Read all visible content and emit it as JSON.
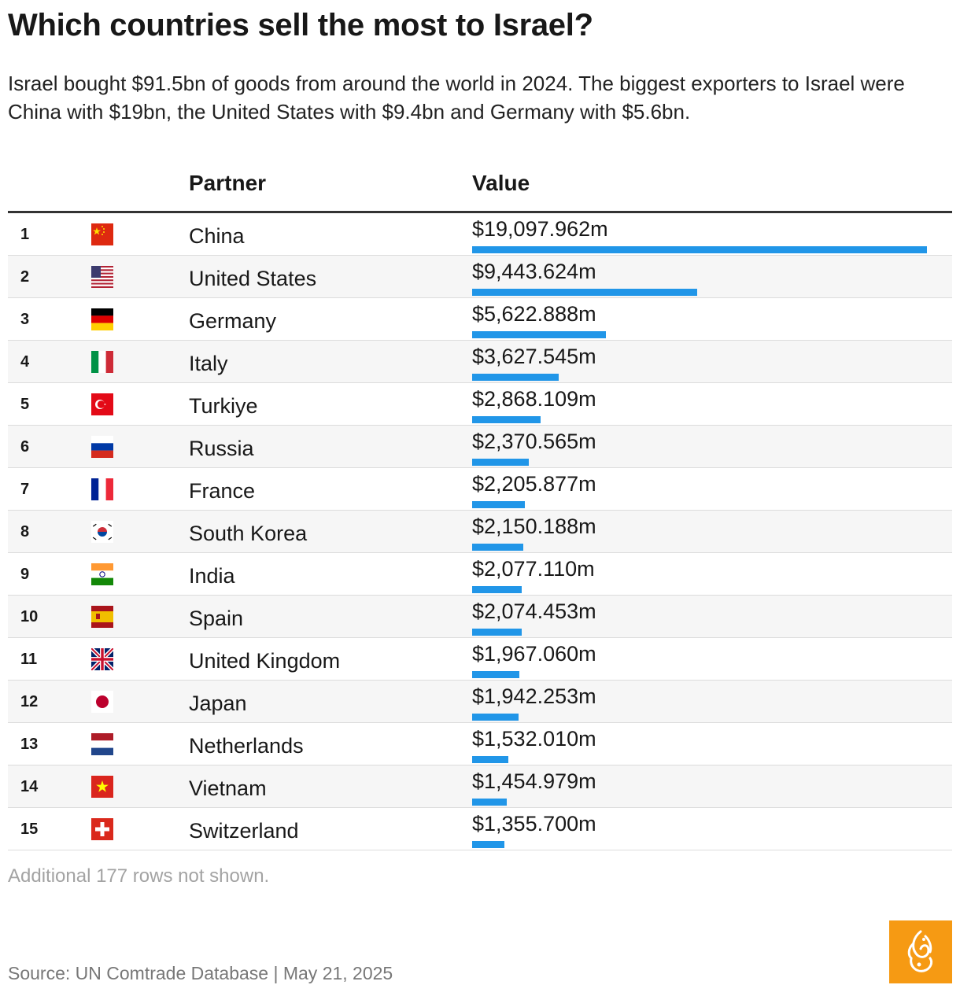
{
  "title": "Which countries sell the most to Israel?",
  "subtitle": "Israel bought $91.5bn of goods from around the world in 2024. The biggest exporters to Israel were China with $19bn, the United States with $9.4bn and Germany with $5.6bn.",
  "columns": {
    "partner": "Partner",
    "value": "Value"
  },
  "note": "Additional 177 rows not shown.",
  "source": "Source: UN Comtrade Database | May 21, 2025",
  "bar_color": "#2196e8",
  "chart_data": {
    "type": "table",
    "max_value": 19097.962,
    "rows": [
      {
        "rank": "1",
        "flag": "china-flag-icon",
        "partner": "China",
        "value": 19097.962,
        "value_label": "$19,097.962m"
      },
      {
        "rank": "2",
        "flag": "usa-flag-icon",
        "partner": "United States",
        "value": 9443.624,
        "value_label": "$9,443.624m"
      },
      {
        "rank": "3",
        "flag": "germany-flag-icon",
        "partner": "Germany",
        "value": 5622.888,
        "value_label": "$5,622.888m"
      },
      {
        "rank": "4",
        "flag": "italy-flag-icon",
        "partner": "Italy",
        "value": 3627.545,
        "value_label": "$3,627.545m"
      },
      {
        "rank": "5",
        "flag": "turkiye-flag-icon",
        "partner": "Turkiye",
        "value": 2868.109,
        "value_label": "$2,868.109m"
      },
      {
        "rank": "6",
        "flag": "russia-flag-icon",
        "partner": "Russia",
        "value": 2370.565,
        "value_label": "$2,370.565m"
      },
      {
        "rank": "7",
        "flag": "france-flag-icon",
        "partner": "France",
        "value": 2205.877,
        "value_label": "$2,205.877m"
      },
      {
        "rank": "8",
        "flag": "south-korea-flag-icon",
        "partner": "South Korea",
        "value": 2150.188,
        "value_label": "$2,150.188m"
      },
      {
        "rank": "9",
        "flag": "india-flag-icon",
        "partner": "India",
        "value": 2077.11,
        "value_label": "$2,077.110m"
      },
      {
        "rank": "10",
        "flag": "spain-flag-icon",
        "partner": "Spain",
        "value": 2074.453,
        "value_label": "$2,074.453m"
      },
      {
        "rank": "11",
        "flag": "uk-flag-icon",
        "partner": "United Kingdom",
        "value": 1967.06,
        "value_label": "$1,967.060m"
      },
      {
        "rank": "12",
        "flag": "japan-flag-icon",
        "partner": "Japan",
        "value": 1942.253,
        "value_label": "$1,942.253m"
      },
      {
        "rank": "13",
        "flag": "netherlands-flag-icon",
        "partner": "Netherlands",
        "value": 1532.01,
        "value_label": "$1,532.010m"
      },
      {
        "rank": "14",
        "flag": "vietnam-flag-icon",
        "partner": "Vietnam",
        "value": 1454.979,
        "value_label": "$1,454.979m"
      },
      {
        "rank": "15",
        "flag": "switzerland-flag-icon",
        "partner": "Switzerland",
        "value": 1355.7,
        "value_label": "$1,355.700m"
      }
    ]
  },
  "logo": {
    "icon": "al-jazeera-logo-icon",
    "color": "#f69a13"
  }
}
